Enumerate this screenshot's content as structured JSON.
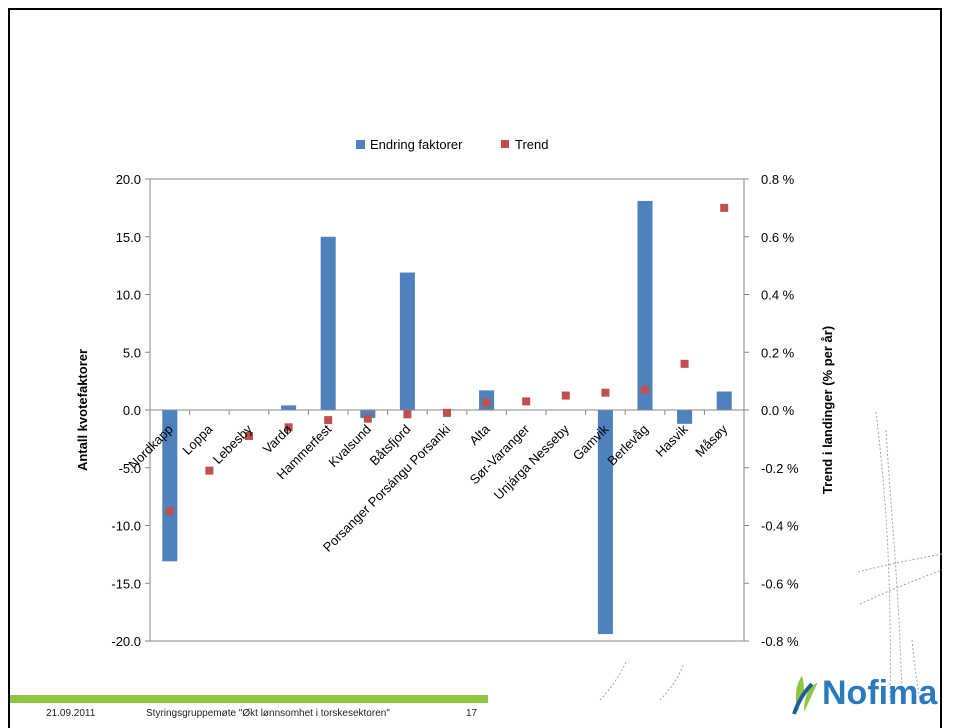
{
  "chart_data": {
    "type": "bar",
    "categories": [
      "Nordkapp",
      "Loppa",
      "Lebesby",
      "Vardø",
      "Hammerfest",
      "Kvalsund",
      "Båtsfjord",
      "Porsanger Porsángu Porsanki",
      "Alta",
      "Sør-Varanger",
      "Unjárga Nesseby",
      "Gamvik",
      "Berlevåg",
      "Hasvik",
      "Måsøy"
    ],
    "series": [
      {
        "name": "Endring faktorer",
        "type": "bar",
        "axis": "left",
        "color": "#4f81bd",
        "values": [
          -13.1,
          0,
          0,
          0.4,
          15.0,
          -0.7,
          11.9,
          0,
          1.7,
          0,
          0,
          -19.4,
          18.1,
          -1.2,
          1.6
        ]
      },
      {
        "name": "Trend",
        "type": "scatter",
        "axis": "right",
        "color": "#c0504d",
        "values": [
          -0.35,
          -0.21,
          -0.09,
          -0.06,
          -0.035,
          -0.03,
          -0.015,
          -0.01,
          0.025,
          0.03,
          0.05,
          0.06,
          0.07,
          0.16,
          0.7
        ]
      }
    ],
    "ylabel": "Antall kvotefaktorer",
    "y2label": "Trend i landinger (% per år)",
    "ylim": [
      -20,
      20
    ],
    "y2lim": [
      -0.8,
      0.8
    ],
    "yticks": [
      "20.0",
      "15.0",
      "10.0",
      "5.0",
      "0.0",
      "-5.0",
      "-10.0",
      "-15.0",
      "-20.0"
    ],
    "y2ticks": [
      "0.8 %",
      "0.6 %",
      "0.4 %",
      "0.2 %",
      "0.0 %",
      "-0.2 %",
      "-0.4 %",
      "-0.6 %",
      "-0.8 %"
    ],
    "legend_position": "top",
    "grid": false
  },
  "footer": {
    "date": "21.09.2011",
    "title": "Styringsgruppemøte \"Økt lønnsomhet i torskesektoren\"",
    "page": "17"
  },
  "logo": {
    "text": "Nofima",
    "color": "#2a7abf"
  },
  "colors": {
    "bar": "#4f81bd",
    "trend": "#c0504d",
    "footer_bar": "#8dc63f"
  }
}
